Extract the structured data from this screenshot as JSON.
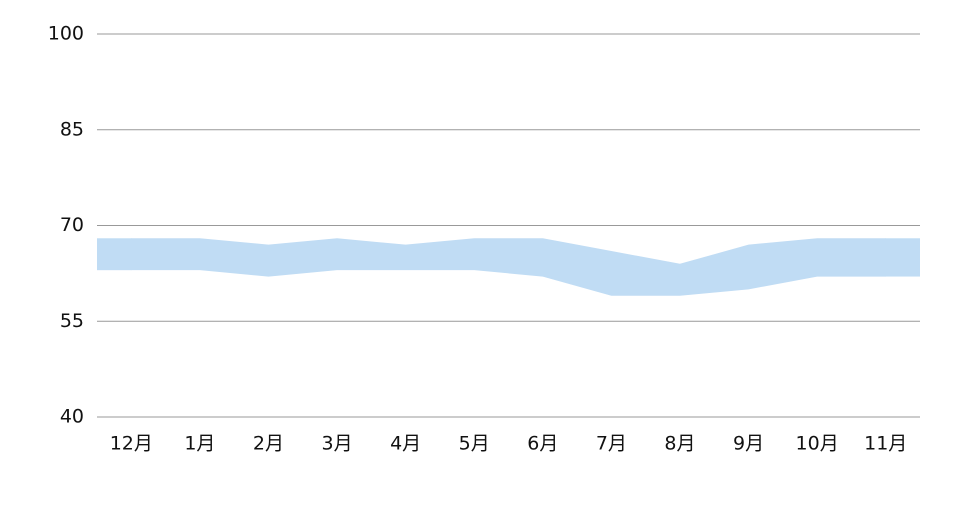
{
  "chart_data": {
    "type": "range-area",
    "categories": [
      "12月",
      "1月",
      "2月",
      "3月",
      "4月",
      "5月",
      "6月",
      "7月",
      "8月",
      "9月",
      "10月",
      "11月"
    ],
    "high": [
      68,
      68,
      67,
      68,
      67,
      68,
      68,
      66,
      64,
      67,
      68,
      68
    ],
    "low": [
      63,
      63,
      62,
      63,
      63,
      63,
      62,
      59,
      59,
      60,
      62,
      62
    ],
    "color": "#c0dcf4",
    "ylim": [
      40,
      100
    ],
    "yticks": [
      40,
      55,
      70,
      85,
      100
    ],
    "grid": true
  }
}
